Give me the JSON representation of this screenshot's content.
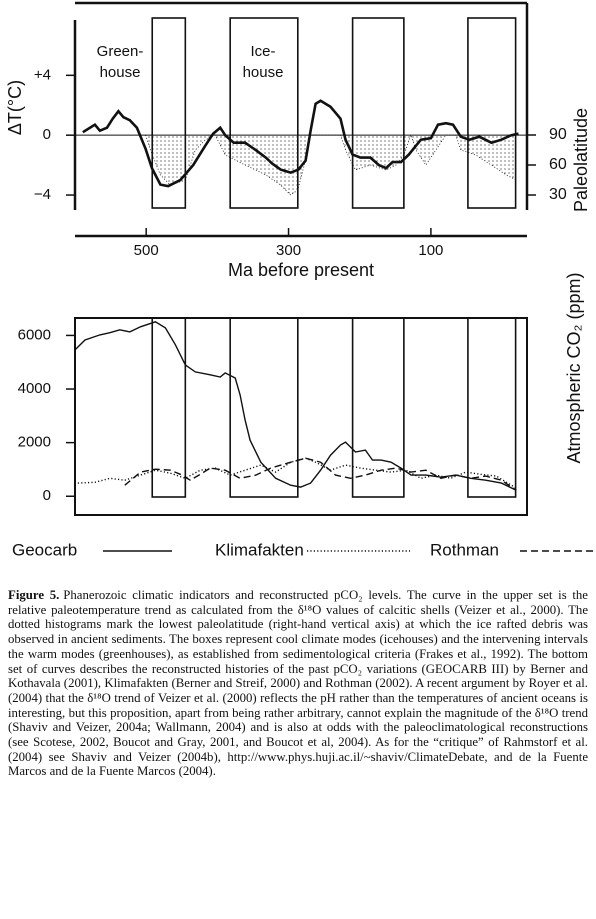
{
  "chart_data": [
    {
      "type": "line",
      "ylabel": "ΔT(°C)",
      "y2label": "Paleolatitude",
      "xlabel": "Ma before present",
      "xlim": [
        600,
        -35
      ],
      "xticks": [
        500,
        300,
        100
      ],
      "ylim": [
        -5,
        8.7
      ],
      "yticks": [
        {
          "value": 4,
          "label": "+4"
        },
        0,
        {
          "value": -4,
          "label": "−4"
        }
      ],
      "y2lim": [
        15,
        220
      ],
      "y2ticks": [
        90,
        60,
        30
      ],
      "zero_line": true,
      "highlight_ranges": [
        [
          491.5,
          445
        ],
        [
          382,
          287
        ],
        [
          210,
          138
        ],
        [
          48,
          -19
        ]
      ],
      "annotations": [
        [
          "Green-",
          "house"
        ],
        [
          "Ice-",
          "house"
        ]
      ],
      "series": [
        {
          "color": "#111111",
          "style": "solid",
          "x": [
            589,
            572,
            565,
            555,
            547,
            539,
            532,
            523,
            513,
            501,
            492,
            480,
            469,
            452,
            434,
            417,
            406,
            396,
            389,
            377,
            361,
            346,
            332,
            323,
            311,
            297,
            286,
            276,
            269,
            262,
            255,
            241,
            234,
            227,
            220,
            210,
            199,
            185,
            173,
            163,
            154,
            142,
            131,
            121,
            114,
            100,
            90,
            79,
            69,
            58,
            46,
            32,
            15,
            1,
            -13,
            -23
          ],
          "values": [
            0.2,
            0.7,
            0.3,
            0.5,
            1.1,
            1.6,
            1.2,
            1.0,
            0.5,
            -0.9,
            -2.2,
            -3.3,
            -3.4,
            -3.0,
            -2.0,
            -0.7,
            0.1,
            0.5,
            0,
            -0.5,
            -0.5,
            -1.0,
            -1.5,
            -1.9,
            -2.3,
            -2.5,
            -2.3,
            -1.7,
            0.3,
            2.1,
            2.3,
            1.9,
            1.5,
            1.1,
            -0.3,
            -1.3,
            -1.5,
            -1.5,
            -2.0,
            -2.2,
            -1.8,
            -1.8,
            -1.3,
            -0.7,
            -0.3,
            -0.2,
            0.7,
            0.8,
            0.7,
            -0.1,
            -0.3,
            -0.1,
            -0.5,
            -0.3,
            0,
            0.1
          ]
        },
        {
          "color": "#111111",
          "style": "dotted-area",
          "axis": "y2",
          "x": [
            501,
            494,
            480,
            466,
            445,
            431,
            417,
            403,
            389,
            375,
            361,
            346,
            332,
            311,
            297,
            287,
            276,
            269,
            227,
            220,
            206,
            185,
            163,
            149,
            138,
            128,
            121,
            107,
            93,
            79,
            65,
            58,
            37,
            15,
            -6,
            -20
          ],
          "values": [
            90,
            75,
            50,
            40,
            45,
            75,
            85,
            90,
            70,
            65,
            60,
            55,
            50,
            40,
            30,
            35,
            65,
            90,
            90,
            75,
            55,
            60,
            55,
            60,
            70,
            90,
            75,
            60,
            75,
            90,
            90,
            75,
            70,
            60,
            50,
            45
          ]
        }
      ]
    },
    {
      "type": "line",
      "y2label": "Atmospheric CO₂ (ppm)",
      "xlim": [
        600,
        -35
      ],
      "ylim": [
        -700,
        6650
      ],
      "yticks": [
        6000,
        4000,
        2000,
        0
      ],
      "highlight_ranges": [
        [
          491.5,
          445
        ],
        [
          382,
          287
        ],
        [
          210,
          138
        ],
        [
          48,
          -19
        ]
      ],
      "legend": "bottom",
      "series": [
        {
          "name": "Geocarb",
          "color": "#111111",
          "style": "solid",
          "x": [
            600,
            586,
            565,
            551,
            537,
            523,
            508,
            487,
            473,
            459,
            445,
            431,
            410,
            396,
            389,
            375,
            368,
            361,
            354,
            339,
            318,
            297,
            283,
            269,
            255,
            241,
            227,
            220,
            206,
            192,
            182,
            170,
            156,
            142,
            128,
            107,
            86,
            65,
            44,
            23,
            1,
            -20
          ],
          "values": [
            5460,
            5830,
            6020,
            6100,
            6210,
            6130,
            6320,
            6510,
            6280,
            5650,
            4900,
            4640,
            4530,
            4450,
            4600,
            4410,
            3780,
            2840,
            2090,
            1270,
            670,
            410,
            340,
            490,
            970,
            1530,
            1910,
            2020,
            1650,
            1720,
            1350,
            1350,
            1270,
            1050,
            790,
            790,
            710,
            790,
            670,
            600,
            490,
            220
          ]
        },
        {
          "name": "Klimafakten",
          "color": "#111111",
          "style": "dotted",
          "x": [
            596,
            572,
            551,
            530,
            508,
            487,
            466,
            445,
            424,
            403,
            382,
            361,
            339,
            318,
            297,
            276,
            262,
            241,
            220,
            199,
            177,
            156,
            135,
            114,
            93,
            72,
            51,
            30,
            8,
            -20
          ],
          "values": [
            490,
            520,
            670,
            600,
            790,
            970,
            860,
            670,
            970,
            1050,
            790,
            970,
            1160,
            900,
            1270,
            1420,
            1270,
            970,
            1160,
            1050,
            970,
            900,
            970,
            670,
            790,
            670,
            900,
            820,
            750,
            300
          ]
        },
        {
          "name": "Rothman",
          "color": "#111111",
          "style": "dashed",
          "x": [
            530,
            508,
            487,
            466,
            452,
            438,
            424,
            410,
            389,
            368,
            346,
            325,
            297,
            276,
            255,
            234,
            213,
            192,
            170,
            149,
            128,
            107,
            86,
            65,
            44,
            23,
            1,
            -20
          ],
          "values": [
            410,
            900,
            1010,
            970,
            820,
            600,
            820,
            1050,
            970,
            670,
            790,
            1050,
            1270,
            1420,
            1270,
            790,
            670,
            790,
            970,
            1050,
            900,
            970,
            670,
            790,
            670,
            750,
            600,
            220
          ]
        }
      ]
    }
  ],
  "caption": {
    "label": "Figure 5.",
    "text": "Phanerozoic climatic indicators and reconstructed pCO₂ levels. The curve in the upper set is the relative paleotemperature trend as calculated from the δ¹⁸O values of calcitic shells (Veizer et al., 2000). The dotted histograms mark the lowest paleolatitude (right-hand vertical axis) at which the ice rafted debris was observed in ancient sediments. The boxes represent cool climate modes (icehouses) and the intervening intervals the warm modes (greenhouses), as established from sedimentological criteria (Frakes et al., 1992). The bottom set of curves describes the reconstructed histories of the past pCO₂ variations (GEOCARB III) by Berner and Kothavala (2001), Klimafakten (Berner and Streif, 2000) and Rothman (2002). A recent argument by Royer et al. (2004) that the δ¹⁸O trend of Veizer et al. (2000) reflects the pH rather than the temperatures of ancient oceans is interesting, but this proposition, apart from being rather arbitrary, cannot explain the magnitude of the δ¹⁸O trend (Shaviv and Veizer, 2004a; Wallmann, 2004) and is also at odds with the paleoclimatological reconstructions (see Scotese, 2002, Boucot and Gray, 2001, and Boucot et al, 2004). As for the “critique” of Rahmstorf et al. (2004) see Shaviv and Veizer (2004b), http://www.phys.huji.ac.il/~shaviv/ClimateDebate, and de la Fuente Marcos and de la Fuente Marcos (2004)."
  }
}
